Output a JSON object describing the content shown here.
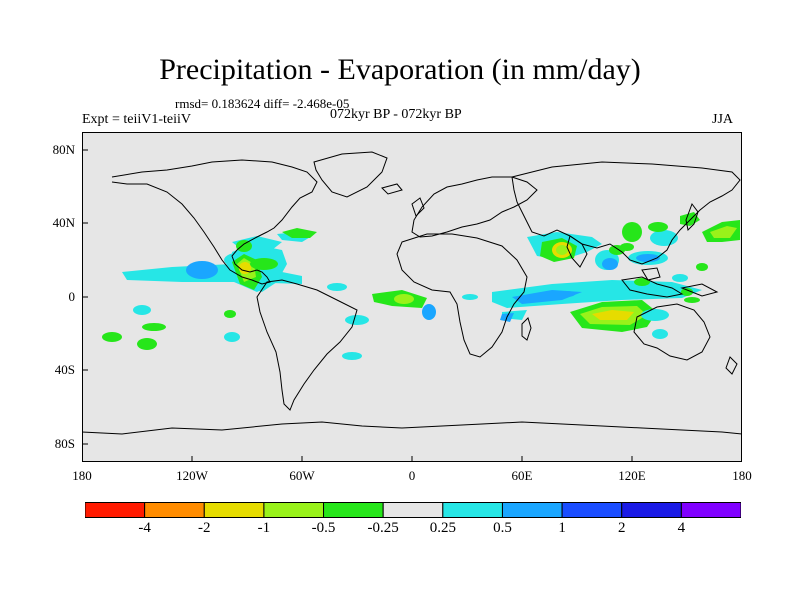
{
  "title": "Precipitation - Evaporation (in mm/day)",
  "stats": "rmsd= 0.183624 diff= -2.468e-05",
  "periods": "072kyr BP - 072kyr BP",
  "experiment": "Expt = teiiV1-teiiV",
  "season": "JJA",
  "axes": {
    "y_ticks": [
      "80N",
      "40N",
      "0",
      "40S",
      "80S"
    ],
    "x_ticks": [
      "180",
      "120W",
      "60W",
      "0",
      "60E",
      "120E",
      "180"
    ]
  },
  "colorbar": {
    "colors": [
      "#ff1a00",
      "#ff8c00",
      "#e6dc00",
      "#99f21a",
      "#26e61a",
      "#e6e6e6",
      "#26e6e6",
      "#1aa6ff",
      "#1a4dff",
      "#1a1ae6",
      "#8000ff"
    ],
    "labels": [
      "-4",
      "-2",
      "-1",
      "-0.5",
      "-0.25",
      "0.25",
      "0.5",
      "1",
      "2",
      "4"
    ]
  },
  "colors": {
    "ocean_background": "#e6e6e6",
    "coastline": "#000000"
  }
}
